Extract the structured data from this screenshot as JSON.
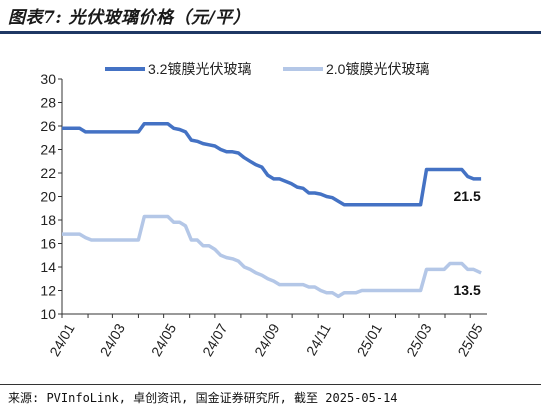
{
  "header": {
    "title": "图表7: 光伏玻璃价格（元/平）"
  },
  "footer": {
    "source": "来源: PVInfoLink, 卓创资讯, 国金证券研究所, 截至 2025-05-14"
  },
  "chart_data": {
    "type": "line",
    "title": "",
    "xlabel": "",
    "ylabel": "",
    "ylim": [
      10,
      30
    ],
    "yticks": [
      10,
      12,
      14,
      16,
      18,
      20,
      22,
      24,
      26,
      28,
      30
    ],
    "xticks": [
      "24/01",
      "24/03",
      "24/05",
      "24/07",
      "24/09",
      "24/11",
      "25/01",
      "25/03",
      "25/05"
    ],
    "grid": false,
    "legend_position": "top",
    "x_start": "2024-01-01",
    "x_end": "2025-05-21",
    "series": [
      {
        "name": "3.2镀膜光伏玻璃",
        "color": "#4472c4",
        "points": [
          [
            "2024-01-01",
            25.8
          ],
          [
            "2024-01-08",
            25.8
          ],
          [
            "2024-01-15",
            25.8
          ],
          [
            "2024-01-22",
            25.8
          ],
          [
            "2024-01-29",
            25.5
          ],
          [
            "2024-02-05",
            25.5
          ],
          [
            "2024-02-12",
            25.5
          ],
          [
            "2024-02-19",
            25.5
          ],
          [
            "2024-02-26",
            25.5
          ],
          [
            "2024-03-04",
            25.5
          ],
          [
            "2024-03-11",
            25.5
          ],
          [
            "2024-03-18",
            25.5
          ],
          [
            "2024-03-25",
            25.5
          ],
          [
            "2024-04-01",
            25.5
          ],
          [
            "2024-04-08",
            26.2
          ],
          [
            "2024-04-15",
            26.2
          ],
          [
            "2024-04-22",
            26.2
          ],
          [
            "2024-04-29",
            26.2
          ],
          [
            "2024-05-06",
            26.2
          ],
          [
            "2024-05-13",
            25.8
          ],
          [
            "2024-05-20",
            25.7
          ],
          [
            "2024-05-27",
            25.5
          ],
          [
            "2024-06-03",
            24.8
          ],
          [
            "2024-06-10",
            24.7
          ],
          [
            "2024-06-17",
            24.5
          ],
          [
            "2024-06-24",
            24.4
          ],
          [
            "2024-07-01",
            24.3
          ],
          [
            "2024-07-08",
            24.0
          ],
          [
            "2024-07-15",
            23.8
          ],
          [
            "2024-07-22",
            23.8
          ],
          [
            "2024-07-29",
            23.7
          ],
          [
            "2024-08-05",
            23.3
          ],
          [
            "2024-08-12",
            23.0
          ],
          [
            "2024-08-19",
            22.7
          ],
          [
            "2024-08-26",
            22.5
          ],
          [
            "2024-09-02",
            21.8
          ],
          [
            "2024-09-09",
            21.5
          ],
          [
            "2024-09-16",
            21.5
          ],
          [
            "2024-09-23",
            21.3
          ],
          [
            "2024-09-30",
            21.1
          ],
          [
            "2024-10-07",
            20.8
          ],
          [
            "2024-10-14",
            20.7
          ],
          [
            "2024-10-21",
            20.3
          ],
          [
            "2024-10-28",
            20.3
          ],
          [
            "2024-11-04",
            20.2
          ],
          [
            "2024-11-11",
            20.0
          ],
          [
            "2024-11-18",
            19.9
          ],
          [
            "2024-11-25",
            19.6
          ],
          [
            "2024-12-02",
            19.3
          ],
          [
            "2024-12-09",
            19.3
          ],
          [
            "2024-12-16",
            19.3
          ],
          [
            "2024-12-23",
            19.3
          ],
          [
            "2024-12-30",
            19.3
          ],
          [
            "2025-01-06",
            19.3
          ],
          [
            "2025-01-13",
            19.3
          ],
          [
            "2025-01-20",
            19.3
          ],
          [
            "2025-01-27",
            19.3
          ],
          [
            "2025-02-03",
            19.3
          ],
          [
            "2025-02-10",
            19.3
          ],
          [
            "2025-02-17",
            19.3
          ],
          [
            "2025-02-24",
            19.3
          ],
          [
            "2025-03-03",
            19.3
          ],
          [
            "2025-03-10",
            22.3
          ],
          [
            "2025-03-17",
            22.3
          ],
          [
            "2025-03-24",
            22.3
          ],
          [
            "2025-03-31",
            22.3
          ],
          [
            "2025-04-07",
            22.3
          ],
          [
            "2025-04-14",
            22.3
          ],
          [
            "2025-04-21",
            22.3
          ],
          [
            "2025-04-28",
            21.7
          ],
          [
            "2025-05-05",
            21.5
          ],
          [
            "2025-05-14",
            21.5
          ]
        ],
        "end_label": "21.5"
      },
      {
        "name": "2.0镀膜光伏玻璃",
        "color": "#b4c7e7",
        "points": [
          [
            "2024-01-01",
            16.8
          ],
          [
            "2024-01-08",
            16.8
          ],
          [
            "2024-01-15",
            16.8
          ],
          [
            "2024-01-22",
            16.8
          ],
          [
            "2024-01-29",
            16.5
          ],
          [
            "2024-02-05",
            16.3
          ],
          [
            "2024-02-12",
            16.3
          ],
          [
            "2024-02-19",
            16.3
          ],
          [
            "2024-02-26",
            16.3
          ],
          [
            "2024-03-04",
            16.3
          ],
          [
            "2024-03-11",
            16.3
          ],
          [
            "2024-03-18",
            16.3
          ],
          [
            "2024-03-25",
            16.3
          ],
          [
            "2024-04-01",
            16.3
          ],
          [
            "2024-04-08",
            18.3
          ],
          [
            "2024-04-15",
            18.3
          ],
          [
            "2024-04-22",
            18.3
          ],
          [
            "2024-04-29",
            18.3
          ],
          [
            "2024-05-06",
            18.3
          ],
          [
            "2024-05-13",
            17.8
          ],
          [
            "2024-05-20",
            17.8
          ],
          [
            "2024-05-27",
            17.5
          ],
          [
            "2024-06-03",
            16.3
          ],
          [
            "2024-06-10",
            16.3
          ],
          [
            "2024-06-17",
            15.8
          ],
          [
            "2024-06-24",
            15.8
          ],
          [
            "2024-07-01",
            15.5
          ],
          [
            "2024-07-08",
            15.0
          ],
          [
            "2024-07-15",
            14.8
          ],
          [
            "2024-07-22",
            14.7
          ],
          [
            "2024-07-29",
            14.5
          ],
          [
            "2024-08-05",
            14.0
          ],
          [
            "2024-08-12",
            13.8
          ],
          [
            "2024-08-19",
            13.5
          ],
          [
            "2024-08-26",
            13.3
          ],
          [
            "2024-09-02",
            13.0
          ],
          [
            "2024-09-09",
            12.8
          ],
          [
            "2024-09-16",
            12.5
          ],
          [
            "2024-09-23",
            12.5
          ],
          [
            "2024-09-30",
            12.5
          ],
          [
            "2024-10-07",
            12.5
          ],
          [
            "2024-10-14",
            12.5
          ],
          [
            "2024-10-21",
            12.3
          ],
          [
            "2024-10-28",
            12.3
          ],
          [
            "2024-11-04",
            12.0
          ],
          [
            "2024-11-11",
            11.8
          ],
          [
            "2024-11-18",
            11.8
          ],
          [
            "2024-11-25",
            11.5
          ],
          [
            "2024-12-02",
            11.8
          ],
          [
            "2024-12-09",
            11.8
          ],
          [
            "2024-12-16",
            11.8
          ],
          [
            "2024-12-23",
            12.0
          ],
          [
            "2024-12-30",
            12.0
          ],
          [
            "2025-01-06",
            12.0
          ],
          [
            "2025-01-13",
            12.0
          ],
          [
            "2025-01-20",
            12.0
          ],
          [
            "2025-01-27",
            12.0
          ],
          [
            "2025-02-03",
            12.0
          ],
          [
            "2025-02-10",
            12.0
          ],
          [
            "2025-02-17",
            12.0
          ],
          [
            "2025-02-24",
            12.0
          ],
          [
            "2025-03-03",
            12.0
          ],
          [
            "2025-03-10",
            13.8
          ],
          [
            "2025-03-17",
            13.8
          ],
          [
            "2025-03-24",
            13.8
          ],
          [
            "2025-03-31",
            13.8
          ],
          [
            "2025-04-07",
            14.3
          ],
          [
            "2025-04-14",
            14.3
          ],
          [
            "2025-04-21",
            14.3
          ],
          [
            "2025-04-28",
            13.8
          ],
          [
            "2025-05-05",
            13.8
          ],
          [
            "2025-05-14",
            13.5
          ]
        ],
        "end_label": "13.5"
      }
    ]
  }
}
